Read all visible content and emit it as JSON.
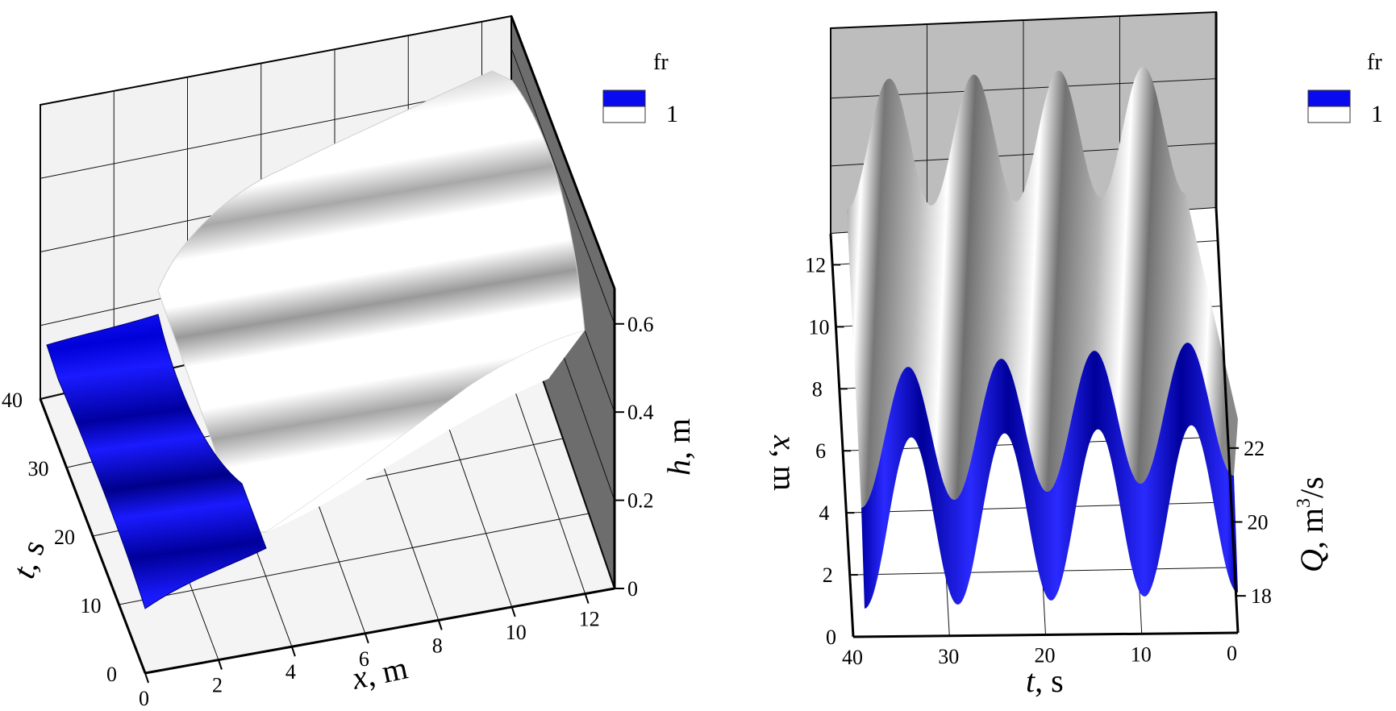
{
  "chart_data": [
    {
      "type": "surface",
      "x": {
        "title_var": "x",
        "title_unit": ", m",
        "ticks": [
          0,
          2,
          4,
          6,
          8,
          10,
          12
        ],
        "range": [
          0,
          12.8
        ]
      },
      "y": {
        "title_var": "t",
        "title_unit": ", s",
        "ticks": [
          0,
          10,
          20,
          30,
          40
        ],
        "range": [
          0,
          40
        ]
      },
      "z": {
        "title_var": "h",
        "title_unit": ", m",
        "ticks": [
          0,
          0.2,
          0.4,
          0.6
        ],
        "range": [
          0,
          0.68
        ]
      },
      "legend": {
        "title": "fr",
        "label": "1",
        "colors": [
          "#0a0aee",
          "#ffffff"
        ],
        "placement": "top-right"
      },
      "surface": {
        "supercritical_region": "x < 3 m (blue)",
        "subcritical_region": "x > 3 m (white/grey shaded)",
        "wave_period_s": 10,
        "approx_depth_upstream_m": 0.12,
        "approx_depth_downstream_m": 0.6
      }
    },
    {
      "type": "surface",
      "x": {
        "title_var": "t",
        "title_unit": ", s",
        "ticks": [
          40,
          30,
          20,
          10,
          0
        ],
        "range": [
          40,
          0
        ]
      },
      "y": {
        "title_var": "x",
        "title_unit": ", m",
        "ticks": [
          0,
          2,
          4,
          6,
          8,
          10,
          12
        ],
        "range": [
          0,
          13
        ]
      },
      "z": {
        "title_var": "Q",
        "title_unit_base": ", m",
        "title_unit_sup": "3",
        "title_unit_tail": "/s",
        "ticks": [
          18,
          20,
          22
        ],
        "range": [
          17,
          23
        ]
      },
      "legend": {
        "title": "fr",
        "label": "1",
        "colors": [
          "#0a0aee",
          "#ffffff"
        ],
        "placement": "top-right"
      },
      "surface": {
        "peaks_count": 4,
        "wave_period_s": 10,
        "supercritical_band": "x < 3 m (blue)"
      }
    }
  ]
}
